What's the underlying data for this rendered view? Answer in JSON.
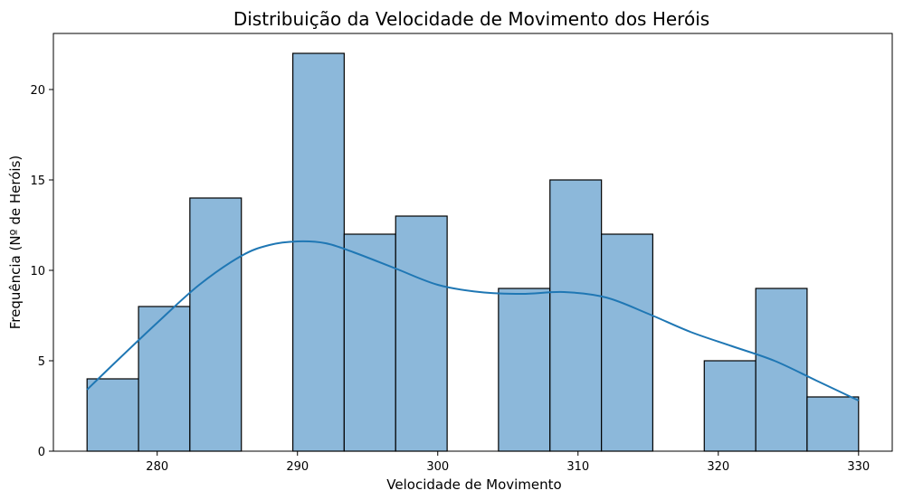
{
  "chart_data": {
    "type": "bar",
    "title": "Distribuição da Velocidade de Movimento dos Heróis",
    "xlabel": "Velocidade de Movimento",
    "ylabel": "Frequência (Nº de Heróis)",
    "xlim": [
      272.6,
      332.4
    ],
    "ylim": [
      0,
      23.1
    ],
    "xticks": [
      "280",
      "290",
      "300",
      "310",
      "320",
      "330"
    ],
    "yticks": [
      "0",
      "5",
      "10",
      "15",
      "20"
    ],
    "grid": false,
    "bins": [
      {
        "x0": 275.0,
        "x1": 278.67,
        "count": 4
      },
      {
        "x0": 278.67,
        "x1": 282.33,
        "count": 8
      },
      {
        "x0": 282.33,
        "x1": 286.0,
        "count": 14
      },
      {
        "x0": 286.0,
        "x1": 289.67,
        "count": 0
      },
      {
        "x0": 289.67,
        "x1": 293.33,
        "count": 22
      },
      {
        "x0": 293.33,
        "x1": 297.0,
        "count": 12
      },
      {
        "x0": 297.0,
        "x1": 300.67,
        "count": 13
      },
      {
        "x0": 300.67,
        "x1": 304.33,
        "count": 0
      },
      {
        "x0": 304.33,
        "x1": 308.0,
        "count": 9
      },
      {
        "x0": 308.0,
        "x1": 311.67,
        "count": 15
      },
      {
        "x0": 311.67,
        "x1": 315.33,
        "count": 12
      },
      {
        "x0": 315.33,
        "x1": 319.0,
        "count": 0
      },
      {
        "x0": 319.0,
        "x1": 322.67,
        "count": 5
      },
      {
        "x0": 322.67,
        "x1": 326.33,
        "count": 9
      },
      {
        "x0": 326.33,
        "x1": 330.0,
        "count": 3
      }
    ],
    "kde_curve": {
      "x": [
        275,
        277,
        280,
        283,
        286,
        288,
        290,
        292,
        294,
        297,
        300,
        303,
        306,
        309,
        312,
        315,
        318,
        321,
        324,
        327,
        330
      ],
      "y": [
        3.4,
        4.9,
        7.1,
        9.2,
        10.8,
        11.4,
        11.6,
        11.5,
        11.0,
        10.1,
        9.2,
        8.8,
        8.7,
        8.8,
        8.5,
        7.6,
        6.6,
        5.8,
        5.0,
        3.9,
        2.8
      ]
    },
    "colors": {
      "bar_fill": "#8cb8da",
      "bar_edge": "#000000",
      "kde_line": "#1f77b4"
    }
  }
}
